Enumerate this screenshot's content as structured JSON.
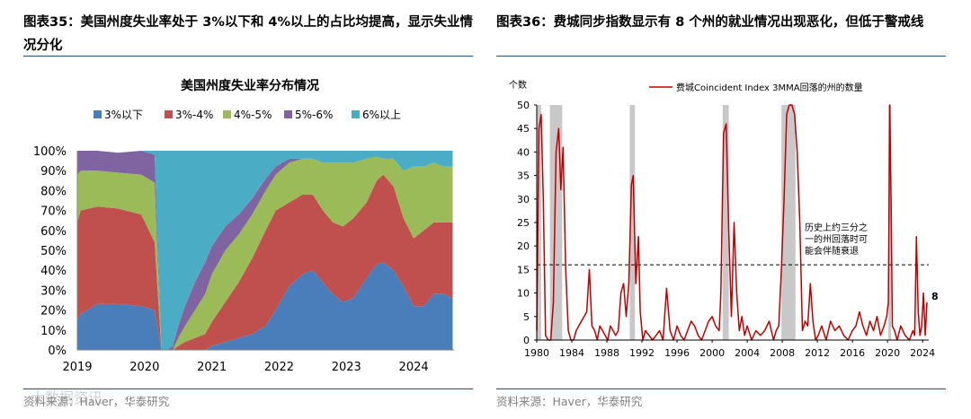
{
  "left_panel": {
    "figure_title": "图表35：美国州度失业率处于 3%以下和 4%以上的占比均提高，显示失业情况分化",
    "source": "资料来源：Haver，华泰研究",
    "watermark": "大数据资讯"
  },
  "right_panel": {
    "figure_title": "图表36：费城同步指数显示有 8 个州的就业情况出现恶化，但低于警戒线",
    "source": "资料来源：Haver，华泰研究"
  },
  "chart_data": [
    {
      "type": "area",
      "stacked": true,
      "percent": true,
      "title": "美国州度失业率分布情况",
      "xlabel": "",
      "ylabel": "",
      "ylim": [
        0,
        100
      ],
      "yticks": [
        "0%",
        "10%",
        "20%",
        "30%",
        "40%",
        "50%",
        "60%",
        "70%",
        "80%",
        "90%",
        "100%"
      ],
      "xticks": [
        "2019",
        "2020",
        "2021",
        "2022",
        "2023",
        "2024"
      ],
      "legend_position": "top",
      "grid": false,
      "x": [
        2019.0,
        2019.05,
        2019.3,
        2019.6,
        2019.95,
        2020.15,
        2020.25,
        2020.33,
        2020.42,
        2020.5,
        2020.6,
        2020.75,
        2020.9,
        2021.0,
        2021.2,
        2021.4,
        2021.6,
        2021.8,
        2021.95,
        2022.15,
        2022.35,
        2022.5,
        2022.65,
        2022.8,
        2022.95,
        2023.1,
        2023.3,
        2023.45,
        2023.55,
        2023.7,
        2023.85,
        2024.0,
        2024.15,
        2024.3,
        2024.45,
        2024.58
      ],
      "series": [
        {
          "name": "3%以下",
          "color": "#4a7ebb",
          "values": [
            15,
            18,
            23,
            23,
            22,
            20,
            0,
            0,
            0,
            0,
            0,
            0,
            0,
            2,
            4,
            6,
            8,
            12,
            20,
            32,
            38,
            40,
            34,
            28,
            24,
            26,
            36,
            43,
            44,
            40,
            32,
            22,
            22,
            28,
            28,
            26
          ]
        },
        {
          "name": "3%-4%",
          "color": "#c0504d",
          "values": [
            49,
            52,
            49,
            48,
            46,
            34,
            0,
            0,
            0,
            2,
            4,
            6,
            8,
            12,
            20,
            28,
            38,
            48,
            50,
            42,
            40,
            38,
            36,
            36,
            38,
            40,
            38,
            42,
            44,
            42,
            34,
            34,
            38,
            36,
            36,
            38
          ]
        },
        {
          "name": "4%-5%",
          "color": "#9bbb59",
          "values": [
            24,
            20,
            18,
            18,
            20,
            30,
            0,
            0,
            0,
            4,
            8,
            14,
            20,
            24,
            26,
            24,
            22,
            20,
            18,
            20,
            18,
            18,
            24,
            30,
            32,
            28,
            22,
            12,
            8,
            14,
            24,
            36,
            32,
            30,
            28,
            28
          ]
        },
        {
          "name": "5%-6%",
          "color": "#8064a2",
          "values": [
            12,
            10,
            10,
            10,
            12,
            14,
            0,
            0,
            2,
            6,
            10,
            14,
            16,
            14,
            12,
            10,
            8,
            6,
            4,
            2,
            0,
            0,
            0,
            0,
            0,
            0,
            0,
            0,
            0,
            0,
            0,
            0,
            0,
            0,
            0,
            0
          ]
        },
        {
          "name": "6%以上",
          "color": "#4bacc6",
          "values": [
            0,
            0,
            0,
            0,
            0,
            2,
            100,
            100,
            98,
            88,
            78,
            66,
            56,
            48,
            38,
            32,
            24,
            14,
            8,
            4,
            4,
            4,
            6,
            6,
            6,
            6,
            4,
            3,
            4,
            4,
            10,
            8,
            8,
            6,
            8,
            8
          ]
        }
      ]
    },
    {
      "type": "line",
      "title": "",
      "ylabel": "个数",
      "xlabel": "",
      "ylim": [
        0,
        50
      ],
      "xlim": [
        1980,
        2024.7
      ],
      "yticks": [
        0,
        5,
        10,
        15,
        20,
        25,
        30,
        35,
        40,
        45,
        50
      ],
      "xticks": [
        1980,
        1984,
        1988,
        1992,
        1996,
        2000,
        2004,
        2008,
        2012,
        2016,
        2020,
        2024
      ],
      "legend_position": "top-center",
      "grid": false,
      "recessions": [
        [
          1980.0,
          1980.5
        ],
        [
          1981.5,
          1982.9
        ],
        [
          1990.6,
          1991.2
        ],
        [
          2001.2,
          2001.9
        ],
        [
          2007.9,
          2009.5
        ],
        [
          2020.1,
          2020.4
        ]
      ],
      "reference_line": {
        "y": 16,
        "style": "dashed"
      },
      "annotation": "历史上约三分之一的州回落时可能会伴随衰退",
      "end_label": "8",
      "series": [
        {
          "name": "费城Coincident Index 3MMA回落的州的数量",
          "color": "#c00000",
          "x": [
            1980.0,
            1980.25,
            1980.5,
            1980.75,
            1981.0,
            1981.3,
            1981.6,
            1981.9,
            1982.2,
            1982.5,
            1982.75,
            1983.0,
            1983.3,
            1983.6,
            1983.9,
            1984.2,
            1984.5,
            1984.8,
            1985.1,
            1985.4,
            1985.7,
            1986.0,
            1986.3,
            1986.6,
            1986.9,
            1987.2,
            1987.5,
            1987.8,
            1988.1,
            1988.4,
            1988.7,
            1989.0,
            1989.3,
            1989.6,
            1989.9,
            1990.2,
            1990.5,
            1990.8,
            1991.0,
            1991.3,
            1991.6,
            1991.8,
            1992.1,
            1992.4,
            1992.8,
            1993.2,
            1993.6,
            1994.0,
            1994.4,
            1994.8,
            1995.2,
            1995.6,
            1996.0,
            1996.4,
            1996.8,
            1997.2,
            1997.6,
            1998.0,
            1998.4,
            1998.8,
            1999.2,
            1999.6,
            2000.0,
            2000.4,
            2000.8,
            2001.0,
            2001.3,
            2001.6,
            2001.9,
            2002.2,
            2002.5,
            2002.8,
            2003.1,
            2003.4,
            2003.7,
            2004.0,
            2004.5,
            2005.0,
            2005.5,
            2006.0,
            2006.5,
            2007.0,
            2007.3,
            2007.6,
            2007.9,
            2008.2,
            2008.5,
            2008.8,
            2009.1,
            2009.4,
            2009.7,
            2010.0,
            2010.3,
            2010.6,
            2010.9,
            2011.2,
            2011.5,
            2011.8,
            2012.1,
            2012.5,
            2013.0,
            2013.5,
            2014.0,
            2014.5,
            2015.0,
            2015.5,
            2016.0,
            2016.4,
            2016.8,
            2017.2,
            2017.6,
            2018.0,
            2018.4,
            2018.8,
            2019.2,
            2019.6,
            2019.9,
            2020.1,
            2020.25,
            2020.4,
            2020.55,
            2020.8,
            2021.1,
            2021.5,
            2022.0,
            2022.5,
            2022.9,
            2023.1,
            2023.3,
            2023.5,
            2023.7,
            2023.9,
            2024.1,
            2024.3,
            2024.5
          ],
          "y": [
            2,
            45,
            48,
            30,
            1,
            0,
            0,
            8,
            40,
            45,
            32,
            41,
            15,
            2,
            0,
            0,
            2,
            3,
            4,
            5,
            6,
            15,
            3,
            2,
            0,
            3,
            2,
            1,
            0,
            3,
            2,
            1,
            2,
            10,
            12,
            5,
            12,
            33,
            35,
            12,
            22,
            6,
            0,
            2,
            1,
            0,
            1,
            2,
            0,
            11,
            2,
            0,
            3,
            1,
            0,
            2,
            4,
            3,
            1,
            0,
            2,
            4,
            5,
            3,
            2,
            10,
            44,
            46,
            23,
            5,
            25,
            10,
            2,
            5,
            1,
            3,
            0,
            2,
            1,
            2,
            4,
            0,
            2,
            3,
            15,
            30,
            48,
            50,
            50,
            48,
            40,
            25,
            2,
            4,
            3,
            12,
            4,
            0,
            1,
            3,
            0,
            4,
            2,
            3,
            1,
            0,
            2,
            3,
            6,
            3,
            1,
            4,
            2,
            5,
            1,
            3,
            5,
            8,
            50,
            30,
            3,
            2,
            0,
            3,
            1,
            0,
            2,
            1,
            22,
            6,
            1,
            3,
            10,
            1,
            8
          ]
        }
      ]
    }
  ]
}
